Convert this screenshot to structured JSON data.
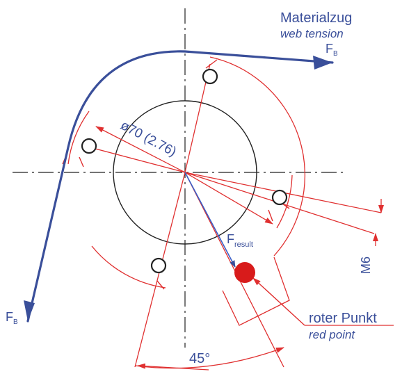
{
  "labels": {
    "material_de": "Materialzug",
    "material_en": "web tension",
    "force_top": "F",
    "force_top_sub": "B",
    "force_left": "F",
    "force_left_sub": "B",
    "diameter": "ø70 (2.76)",
    "result": "F",
    "result_sub": "result",
    "thread": "M6",
    "angle": "45°",
    "point_de": "roter Punkt",
    "point_en": "red point"
  },
  "colors": {
    "centerline": "#222222",
    "circle": "#222222",
    "web": "#3a4f9a",
    "dimension": "#e03030",
    "red_point": "#d81b1b",
    "result_arrow": "#3a5fc8",
    "label_text": "#3a4f9a"
  }
}
